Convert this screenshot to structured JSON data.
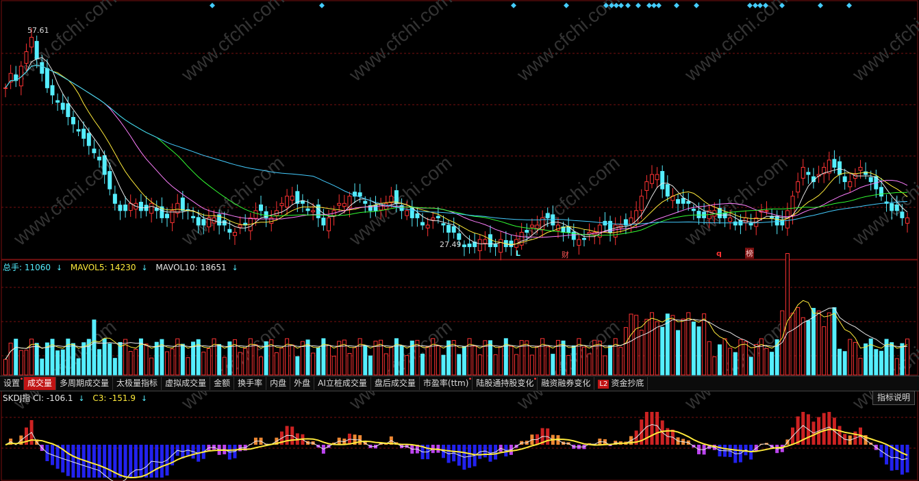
{
  "price_panel": {
    "high_label": "57.61",
    "low_label": "27.49",
    "markers": [
      {
        "text": "L",
        "color": "#5ff"
      },
      {
        "text": "财",
        "color": "#f55"
      },
      {
        "text": "q",
        "color": "#f33"
      },
      {
        "text": "榜",
        "color": "#fcc"
      }
    ],
    "watermark": "www.cfchi.com"
  },
  "volume_panel": {
    "legend": [
      {
        "label": "总手: 11060",
        "color": "#5ef",
        "arrow": "↓"
      },
      {
        "label": "MAVOL5: 14230",
        "color": "#ffeb3b",
        "arrow": "↓"
      },
      {
        "label": "MAVOL10: 18651",
        "color": "#e8e8e8",
        "arrow": "↓"
      }
    ]
  },
  "tabs": [
    {
      "label": "设置",
      "dot": true
    },
    {
      "label": "成交量",
      "active": true
    },
    {
      "label": "多周期成交量"
    },
    {
      "label": "太极量指标"
    },
    {
      "label": "虚拟成交量"
    },
    {
      "label": "金额"
    },
    {
      "label": "换手率"
    },
    {
      "label": "内盘"
    },
    {
      "label": "外盘"
    },
    {
      "label": "AI立桩成交量"
    },
    {
      "label": "盘后成交量"
    },
    {
      "label": "市盈率(ttm)",
      "dot": true
    },
    {
      "label": "陆股通持股变化",
      "dot": true
    },
    {
      "label": "融资融券变化"
    },
    {
      "label": "资金抄底",
      "badge": "L2"
    }
  ],
  "indicator_panel": {
    "legend": [
      {
        "label": "SKDJ指 CI: -106.1",
        "color": "#e8e8e8",
        "arrow": "↓"
      },
      {
        "label": "C3: -151.9",
        "color": "#ffeb3b",
        "arrow": "↓"
      }
    ],
    "explain_button": "指标说明"
  },
  "colors": {
    "up": "#f33",
    "down": "#5ef",
    "ma5": "#e8e8e8",
    "ma10": "#ffeb3b",
    "ma20": "#ff7fff",
    "ma30": "#3f3",
    "ma60": "#4cf",
    "grid": "#7a1111"
  },
  "chart_data": {
    "type": "candlestick",
    "price_min": 27.49,
    "price_max": 57.61,
    "candles_close": [
      50,
      52,
      51,
      53,
      55,
      57,
      54,
      52,
      50,
      49,
      48,
      47,
      46,
      45,
      44,
      43,
      42,
      41,
      40,
      38,
      36,
      34,
      33,
      33,
      34,
      34,
      33,
      33,
      34,
      33,
      32,
      32,
      33,
      34,
      33,
      33,
      32,
      31,
      31,
      32,
      32,
      31,
      31,
      30,
      30,
      31,
      31,
      32,
      33,
      33,
      32,
      32,
      33,
      34,
      35,
      35,
      34,
      34,
      33,
      33,
      32,
      31,
      32,
      33,
      34,
      34,
      35,
      35,
      35,
      34,
      33,
      33,
      34,
      34,
      35,
      34,
      33,
      33,
      32,
      32,
      31,
      31,
      32,
      32,
      31,
      30,
      30,
      29,
      28,
      28,
      28,
      29,
      29,
      28,
      28,
      29,
      28,
      28,
      29,
      30,
      30,
      31,
      31,
      32,
      32,
      31,
      31,
      30,
      30,
      29,
      29,
      29,
      30,
      30,
      31,
      31,
      30,
      31,
      31,
      31,
      32,
      33,
      35,
      37,
      38,
      38,
      36,
      35,
      35,
      34,
      34,
      34,
      33,
      32,
      32,
      33,
      33,
      32,
      32,
      32,
      31,
      31,
      32,
      31,
      32,
      33,
      33,
      32,
      31,
      31,
      33,
      35,
      37,
      39,
      38,
      37,
      38,
      39,
      40,
      39,
      38,
      37,
      37,
      38,
      39,
      38,
      37,
      36,
      35,
      34,
      33,
      33,
      32,
      32
    ],
    "volume_max": 100,
    "indicator_range": [
      -160,
      120
    ]
  }
}
